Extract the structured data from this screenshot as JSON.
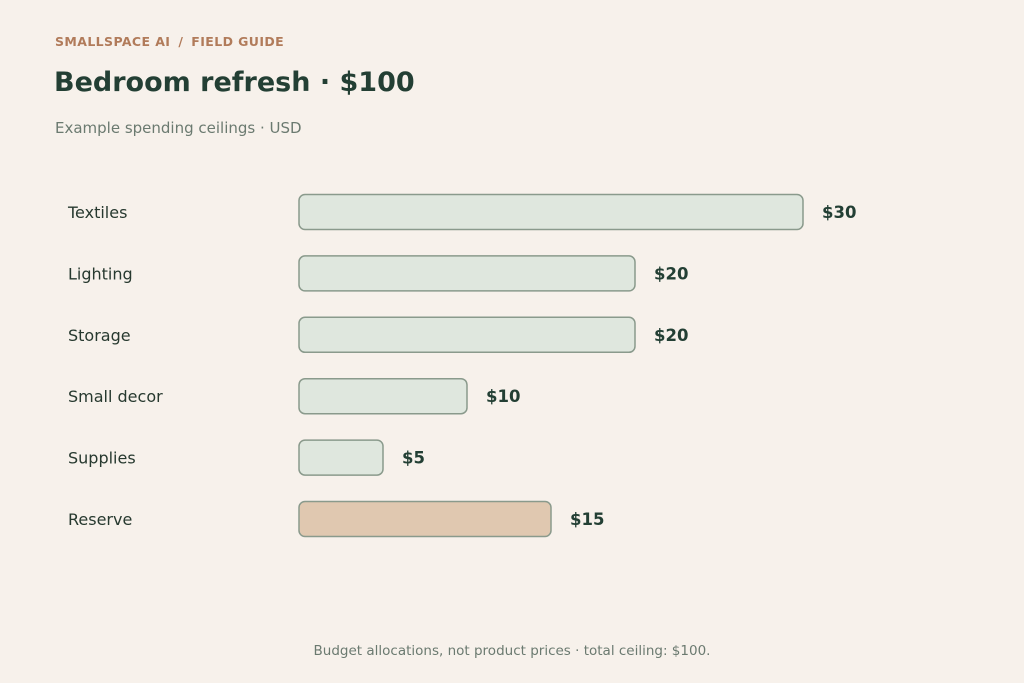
{
  "header": {
    "brand": "SMALLSPACE AI",
    "separator": "/",
    "section": "FIELD GUIDE",
    "title": "Bedroom refresh · $100",
    "subtitle": "Example spending ceilings · USD"
  },
  "footer": {
    "note": "Budget allocations, not product prices · total ceiling: $100."
  },
  "colors": {
    "bar_fill": "#dfe7de",
    "bar_stroke": "#8a9a8c",
    "reserve_fill": "#e0c8b0",
    "background": "#f7f1eb"
  },
  "chart_data": {
    "type": "bar",
    "orientation": "horizontal",
    "title": "Bedroom refresh · $100",
    "subtitle": "Example spending ceilings · USD",
    "categories": [
      "Textiles",
      "Lighting",
      "Storage",
      "Small decor",
      "Supplies",
      "Reserve"
    ],
    "values": [
      30,
      20,
      20,
      10,
      5,
      15
    ],
    "value_labels": [
      "$30",
      "$20",
      "$20",
      "$10",
      "$5",
      "$15"
    ],
    "highlight": [
      "Reserve"
    ],
    "unit": "USD",
    "xlim": [
      0,
      30
    ],
    "grid": false,
    "legend": "none"
  }
}
